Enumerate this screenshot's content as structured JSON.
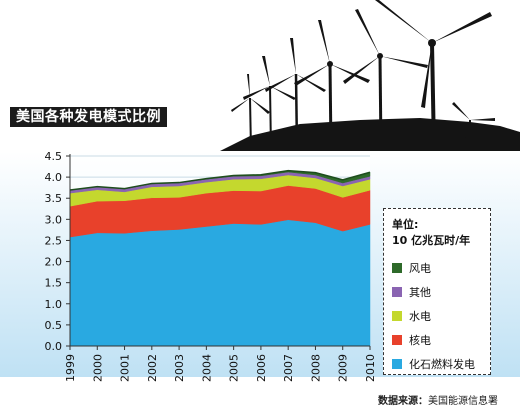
{
  "title": "美国各种发电模式比例",
  "source": {
    "label": "数据来源：",
    "value": "美国能源信息署"
  },
  "legend": {
    "unit_label": "单位:",
    "unit_value": "10 亿兆瓦时/年"
  },
  "chart_data": {
    "type": "area",
    "stacked": true,
    "x": [
      "1999",
      "2000",
      "2001",
      "2002",
      "2003",
      "2004",
      "2005",
      "2006",
      "2007",
      "2008",
      "2009",
      "2010"
    ],
    "ylim": [
      0,
      4.5
    ],
    "yticks": [
      "0.0",
      "0.5",
      "1.0",
      "1.5",
      "2.0",
      "2.5",
      "3.0",
      "3.5",
      "4.0",
      "4.5"
    ],
    "grid": true,
    "legend_placement": "right",
    "series": [
      {
        "name": "化石燃料发电",
        "color": "#29a9e1",
        "values": [
          2.58,
          2.68,
          2.67,
          2.73,
          2.76,
          2.83,
          2.9,
          2.88,
          2.99,
          2.92,
          2.72,
          2.88
        ]
      },
      {
        "name": "核电",
        "color": "#e8412b",
        "values": [
          0.73,
          0.75,
          0.77,
          0.78,
          0.76,
          0.79,
          0.78,
          0.79,
          0.81,
          0.81,
          0.8,
          0.81
        ]
      },
      {
        "name": "水电",
        "color": "#c4d82e",
        "values": [
          0.31,
          0.27,
          0.21,
          0.26,
          0.27,
          0.26,
          0.27,
          0.29,
          0.25,
          0.25,
          0.27,
          0.26
        ]
      },
      {
        "name": "其他",
        "color": "#8a64b2",
        "values": [
          0.07,
          0.07,
          0.07,
          0.07,
          0.07,
          0.07,
          0.07,
          0.07,
          0.07,
          0.07,
          0.07,
          0.07
        ]
      },
      {
        "name": "风电",
        "color": "#2e6a2a",
        "values": [
          0.005,
          0.006,
          0.007,
          0.01,
          0.011,
          0.014,
          0.018,
          0.026,
          0.034,
          0.055,
          0.074,
          0.095
        ]
      }
    ],
    "legend_order": [
      4,
      3,
      2,
      1,
      0
    ]
  }
}
